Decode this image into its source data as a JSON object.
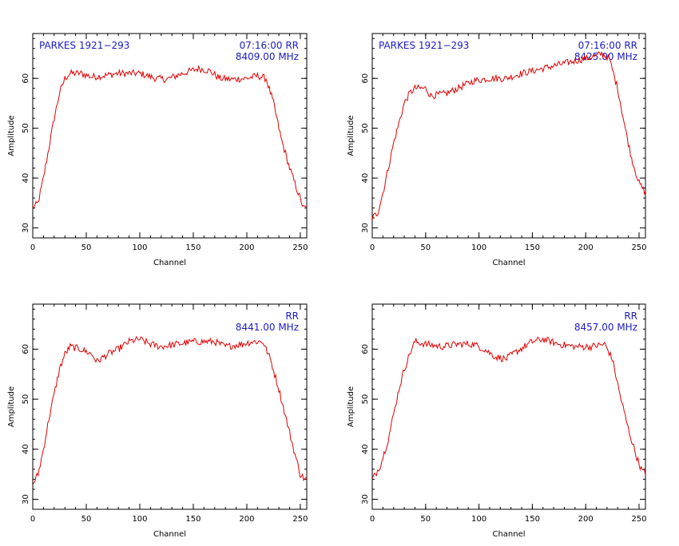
{
  "chart_data": [
    {
      "type": "line",
      "panel": "top-left",
      "annotations": {
        "source": "PARKES 1921−293",
        "time_pol": "07:16:00  RR",
        "freq": "8409.00 MHz"
      },
      "xlabel": "Channel",
      "ylabel": "Amplitude",
      "xlim": [
        0,
        256
      ],
      "ylim": [
        28,
        69
      ],
      "xticks": [
        0,
        50,
        100,
        150,
        200,
        250
      ],
      "yticks": [
        30,
        40,
        50,
        60
      ],
      "series_color": "#e00000",
      "points": [
        [
          0,
          34
        ],
        [
          5,
          35
        ],
        [
          10,
          40
        ],
        [
          15,
          46
        ],
        [
          20,
          52
        ],
        [
          25,
          57
        ],
        [
          30,
          60
        ],
        [
          35,
          61
        ],
        [
          45,
          61
        ],
        [
          55,
          60.3
        ],
        [
          65,
          60.5
        ],
        [
          80,
          61
        ],
        [
          100,
          61
        ],
        [
          115,
          60
        ],
        [
          125,
          59.8
        ],
        [
          140,
          61
        ],
        [
          155,
          62
        ],
        [
          165,
          61.5
        ],
        [
          175,
          60
        ],
        [
          185,
          59.8
        ],
        [
          200,
          60
        ],
        [
          210,
          60.5
        ],
        [
          218,
          60
        ],
        [
          225,
          55
        ],
        [
          232,
          48
        ],
        [
          240,
          42
        ],
        [
          248,
          37
        ],
        [
          253,
          34
        ],
        [
          256,
          34
        ]
      ]
    },
    {
      "type": "line",
      "panel": "top-right",
      "annotations": {
        "source": "PARKES 1921−293",
        "time_pol": "07:16:00  RR",
        "freq": "8425.00 MHz"
      },
      "xlabel": "Channel",
      "ylabel": "Amplitude",
      "xlim": [
        0,
        256
      ],
      "ylim": [
        28,
        69
      ],
      "xticks": [
        0,
        50,
        100,
        150,
        200,
        250
      ],
      "yticks": [
        30,
        40,
        50,
        60
      ],
      "series_color": "#e00000",
      "points": [
        [
          0,
          32
        ],
        [
          5,
          33
        ],
        [
          10,
          37
        ],
        [
          15,
          42
        ],
        [
          20,
          47
        ],
        [
          25,
          51
        ],
        [
          30,
          55
        ],
        [
          35,
          57
        ],
        [
          40,
          58
        ],
        [
          50,
          58
        ],
        [
          55,
          56.5
        ],
        [
          70,
          57
        ],
        [
          80,
          58
        ],
        [
          95,
          59.5
        ],
        [
          110,
          60
        ],
        [
          125,
          60
        ],
        [
          140,
          61
        ],
        [
          160,
          62
        ],
        [
          180,
          63
        ],
        [
          200,
          64
        ],
        [
          210,
          64.5
        ],
        [
          215,
          65
        ],
        [
          222,
          64
        ],
        [
          230,
          58
        ],
        [
          237,
          50
        ],
        [
          243,
          44
        ],
        [
          250,
          39
        ],
        [
          256,
          37
        ]
      ]
    },
    {
      "type": "line",
      "panel": "bottom-left",
      "annotations": {
        "source": "",
        "time_pol": "RR",
        "freq": "8441.00 MHz"
      },
      "xlabel": "Channel",
      "ylabel": "Amplitude",
      "xlim": [
        0,
        256
      ],
      "ylim": [
        28,
        69
      ],
      "xticks": [
        0,
        50,
        100,
        150,
        200,
        250
      ],
      "yticks": [
        30,
        40,
        50,
        60
      ],
      "series_color": "#e00000",
      "points": [
        [
          0,
          33
        ],
        [
          5,
          35
        ],
        [
          10,
          40
        ],
        [
          15,
          46
        ],
        [
          20,
          51
        ],
        [
          25,
          56
        ],
        [
          30,
          59
        ],
        [
          35,
          60.5
        ],
        [
          45,
          60
        ],
        [
          55,
          59
        ],
        [
          60,
          57.5
        ],
        [
          70,
          59
        ],
        [
          80,
          60
        ],
        [
          90,
          61.5
        ],
        [
          100,
          62
        ],
        [
          110,
          61
        ],
        [
          120,
          60.5
        ],
        [
          135,
          61
        ],
        [
          150,
          61.5
        ],
        [
          170,
          61.5
        ],
        [
          180,
          60.5
        ],
        [
          195,
          61
        ],
        [
          205,
          61.5
        ],
        [
          215,
          61.5
        ],
        [
          222,
          58
        ],
        [
          230,
          52
        ],
        [
          238,
          45
        ],
        [
          245,
          39
        ],
        [
          250,
          35
        ],
        [
          254,
          34
        ],
        [
          256,
          34
        ]
      ]
    },
    {
      "type": "line",
      "panel": "bottom-right",
      "annotations": {
        "source": "",
        "time_pol": "RR",
        "freq": "8457.00 MHz"
      },
      "xlabel": "Channel",
      "ylabel": "Amplitude",
      "xlim": [
        0,
        256
      ],
      "ylim": [
        28,
        69
      ],
      "xticks": [
        0,
        50,
        100,
        150,
        200,
        250
      ],
      "yticks": [
        30,
        40,
        50,
        60
      ],
      "series_color": "#e00000",
      "points": [
        [
          0,
          34
        ],
        [
          3,
          35
        ],
        [
          8,
          37
        ],
        [
          15,
          42
        ],
        [
          20,
          47
        ],
        [
          25,
          52
        ],
        [
          30,
          56
        ],
        [
          35,
          59
        ],
        [
          40,
          61.5
        ],
        [
          50,
          61
        ],
        [
          65,
          60.5
        ],
        [
          80,
          61
        ],
        [
          95,
          61
        ],
        [
          105,
          60
        ],
        [
          115,
          58.5
        ],
        [
          125,
          58
        ],
        [
          135,
          59.5
        ],
        [
          150,
          61.5
        ],
        [
          160,
          62
        ],
        [
          175,
          61
        ],
        [
          190,
          60.5
        ],
        [
          205,
          60.5
        ],
        [
          218,
          61
        ],
        [
          225,
          58
        ],
        [
          232,
          51
        ],
        [
          240,
          44
        ],
        [
          247,
          39
        ],
        [
          252,
          36
        ],
        [
          256,
          35
        ]
      ]
    }
  ]
}
